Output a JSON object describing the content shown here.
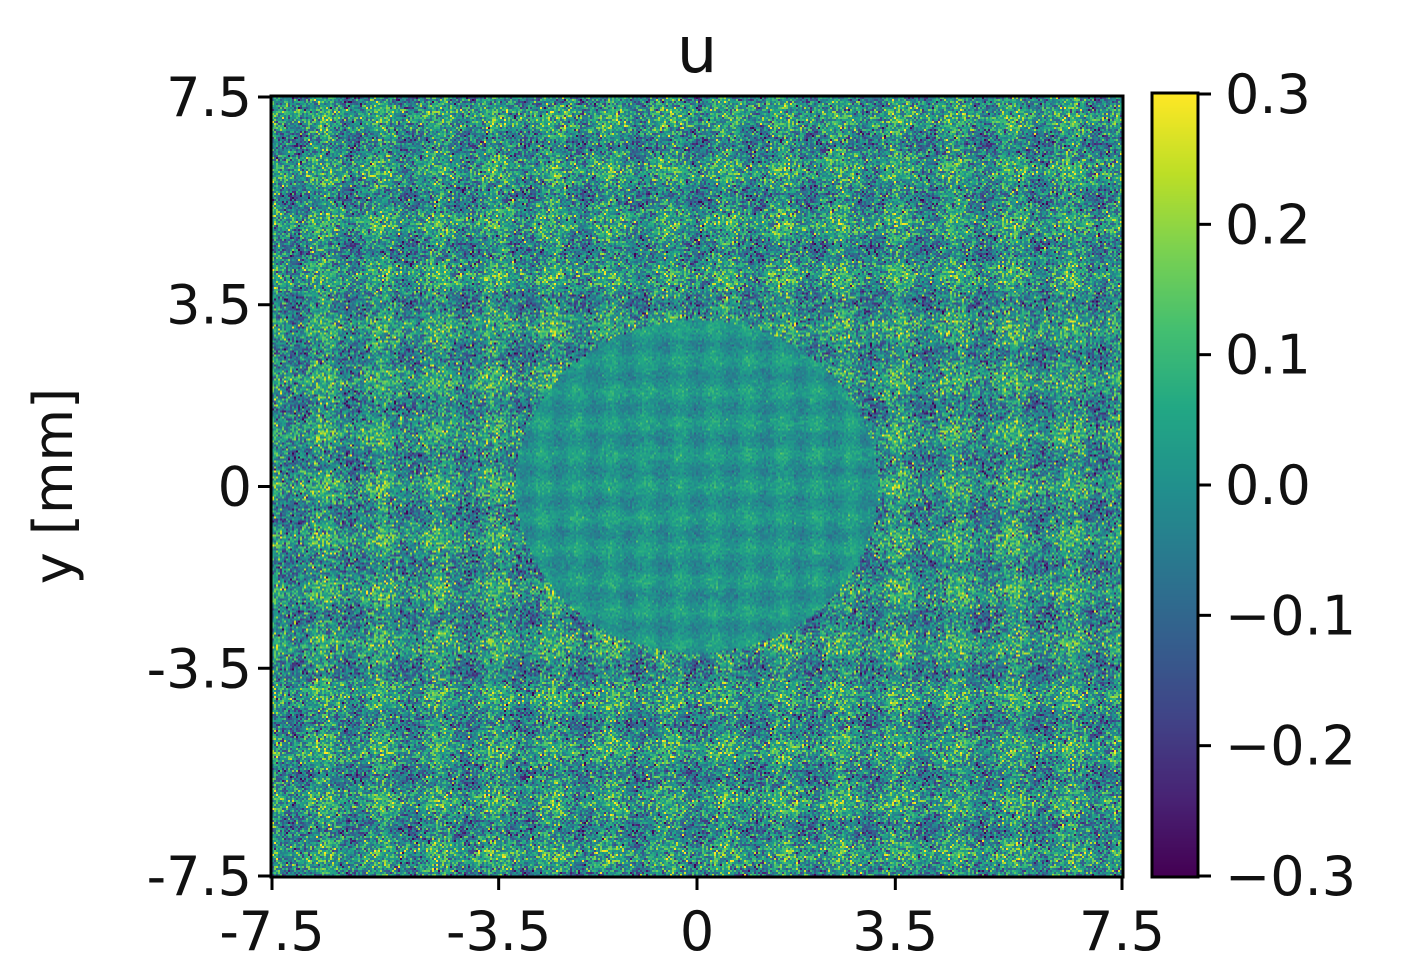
{
  "chart_data": {
    "type": "heatmap",
    "title": "u",
    "xlabel": "",
    "ylabel": "y [mm]",
    "xlim": [
      -7.5,
      7.5
    ],
    "ylim": [
      -7.5,
      7.5
    ],
    "x_ticks": [
      {
        "value": -7.5,
        "label": "-7.5"
      },
      {
        "value": -3.5,
        "label": "-3.5"
      },
      {
        "value": 0,
        "label": "0"
      },
      {
        "value": 3.5,
        "label": "3.5"
      },
      {
        "value": 7.5,
        "label": "7.5"
      }
    ],
    "y_ticks": [
      {
        "value": 7.5,
        "label": "7.5"
      },
      {
        "value": 3.5,
        "label": "3.5"
      },
      {
        "value": 0,
        "label": "0"
      },
      {
        "value": -3.5,
        "label": "-3.5"
      },
      {
        "value": -7.5,
        "label": "-7.5"
      }
    ],
    "colorbar": {
      "colormap": "viridis",
      "vmin": -0.3,
      "vmax": 0.3,
      "ticks": [
        {
          "value": 0.3,
          "label": "0.3"
        },
        {
          "value": 0.2,
          "label": "0.2"
        },
        {
          "value": 0.1,
          "label": "0.1"
        },
        {
          "value": 0.0,
          "label": "0.0"
        },
        {
          "value": -0.1,
          "label": "−0.1"
        },
        {
          "value": -0.2,
          "label": "−0.2"
        },
        {
          "value": -0.3,
          "label": "−0.3"
        }
      ]
    },
    "field": {
      "description_free": true,
      "background_noise_amplitude": 0.15,
      "central_region": {
        "center": [
          0,
          0
        ],
        "radius": 3.2,
        "noise_amplitude": 0.06
      },
      "grid_on": false
    }
  }
}
